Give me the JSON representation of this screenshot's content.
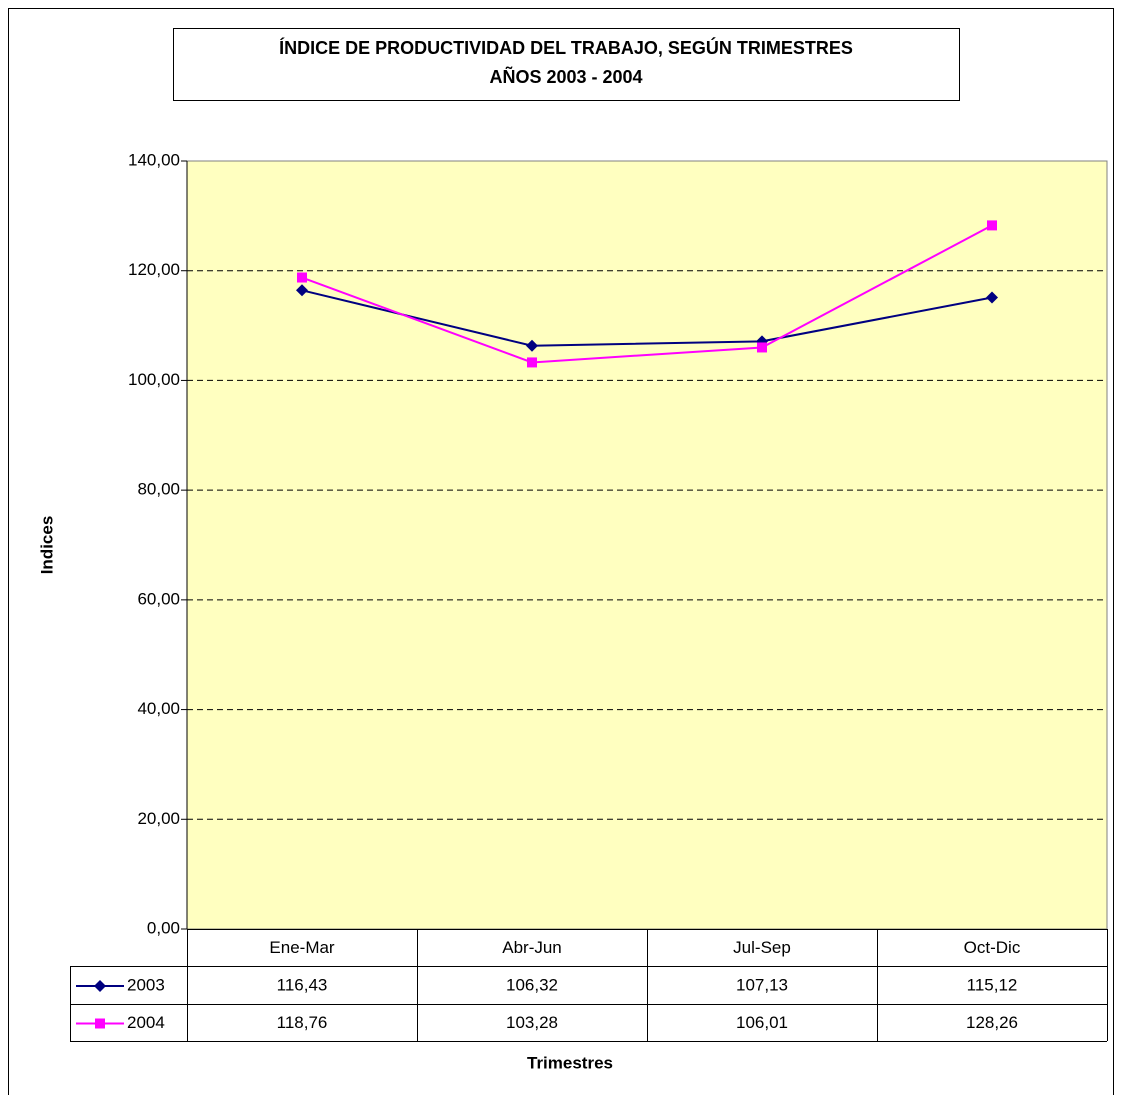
{
  "chart_data": {
    "type": "line",
    "title": "ÍNDICE DE PRODUCTIVIDAD DEL TRABAJO, SEGÚN TRIMESTRES",
    "subtitle": "AÑOS 2003 - 2004",
    "x_label": "Trimestres",
    "y_label": "Indices",
    "categories": [
      "Ene-Mar",
      "Abr-Jun",
      "Jul-Sep",
      "Oct-Dic"
    ],
    "series": [
      {
        "name": "2003",
        "color": "#000080",
        "marker": "diamond",
        "values": [
          116.43,
          106.32,
          107.13,
          115.12
        ],
        "value_labels": [
          "116,43",
          "106,32",
          "107,13",
          "115,12"
        ]
      },
      {
        "name": "2004",
        "color": "#ff00ff",
        "marker": "square",
        "values": [
          118.76,
          103.28,
          106.01,
          128.26
        ],
        "value_labels": [
          "118,76",
          "103,28",
          "106,01",
          "128,26"
        ]
      }
    ],
    "ylim": [
      0,
      140
    ],
    "yticks": [
      {
        "value": 0,
        "label": "0,00"
      },
      {
        "value": 20,
        "label": "20,00"
      },
      {
        "value": 40,
        "label": "40,00"
      },
      {
        "value": 60,
        "label": "60,00"
      },
      {
        "value": 80,
        "label": "80,00"
      },
      {
        "value": 100,
        "label": "100,00"
      },
      {
        "value": 120,
        "label": "120,00"
      },
      {
        "value": 140,
        "label": "140,00"
      }
    ],
    "grid": true,
    "background": "#ffffc0"
  }
}
